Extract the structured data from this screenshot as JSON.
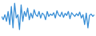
{
  "chart_data": {
    "type": "line",
    "color": "#3a8fd6",
    "tick_labels": false,
    "grid": false,
    "ylim": [
      0,
      100
    ],
    "values": [
      55,
      45,
      60,
      40,
      70,
      30,
      85,
      20,
      95,
      50,
      60,
      15,
      90,
      40,
      70,
      55,
      80,
      45,
      65,
      50,
      75,
      60,
      55,
      70,
      50,
      65,
      60,
      45,
      70,
      55,
      62,
      58,
      66,
      50,
      72,
      60,
      55,
      68,
      52,
      64,
      58,
      70,
      48,
      66,
      60,
      55,
      63,
      57,
      68,
      50,
      60,
      30,
      65,
      20,
      58,
      62,
      55,
      60
    ]
  }
}
